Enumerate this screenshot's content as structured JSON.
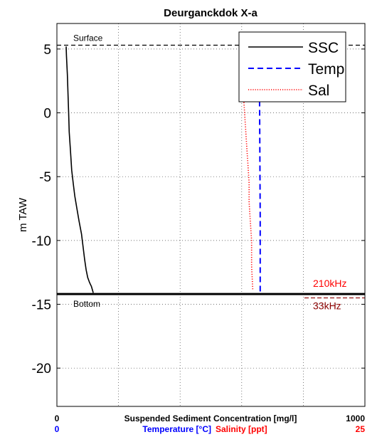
{
  "chart_data": {
    "type": "line",
    "title": "Deurganckdok X-a",
    "ylabel": "m TAW",
    "ylim": [
      -23,
      7
    ],
    "yticks": [
      5,
      0,
      -5,
      -10,
      -15,
      -20
    ],
    "grid": true,
    "legend_position": "top-right",
    "colors": {
      "ssc": "#000000",
      "temp": "#0000ff",
      "sal": "#ff0000",
      "label_210": "#ff0000",
      "label_33": "#8b0000"
    },
    "x_axes": [
      {
        "name": "Suspended Sediment Concentration [mg/l]",
        "min_label": "0",
        "max_label": "1000",
        "min": 0,
        "max": 1000,
        "color": "#000000"
      },
      {
        "name": "Temperature [°C]",
        "min_label": "0",
        "color": "#0000ff"
      },
      {
        "name": "Salinity [ppt]",
        "max_label": "25",
        "min": 0,
        "max": 25,
        "color": "#ff0000"
      }
    ],
    "reference_lines": [
      {
        "label": "Surface",
        "y": 5.3,
        "style": "dashed",
        "color": "#000000"
      },
      {
        "label": "Bottom",
        "y": -14.2,
        "style": "solid",
        "color": "#000000"
      }
    ],
    "annotations": [
      {
        "text": "210kHz",
        "y": -14.2,
        "color": "#ff0000"
      },
      {
        "text": "33kHz",
        "y": -14.5,
        "color": "#8b0000"
      }
    ],
    "series": [
      {
        "name": "SSC",
        "style": "solid",
        "color": "#000000",
        "x": [
          30,
          31,
          34,
          36,
          38,
          40,
          44,
          48,
          53,
          58,
          65,
          72,
          80,
          85,
          90,
          95,
          100,
          106,
          112,
          118
        ],
        "y": [
          5.2,
          4.5,
          3,
          1.5,
          0,
          -1.5,
          -3,
          -4.5,
          -5.5,
          -6.5,
          -7.5,
          -8.5,
          -9.5,
          -10.5,
          -11.5,
          -12.3,
          -12.9,
          -13.3,
          -13.6,
          -14.1
        ]
      },
      {
        "name": "Temp",
        "style": "dashed",
        "color": "#0000ff",
        "x": [
          0.658,
          0.658,
          0.66,
          0.66
        ],
        "y": [
          5.3,
          1.0,
          -8.0,
          -14.2
        ]
      },
      {
        "name": "Sal",
        "style": "dotted",
        "color": "#ff0000",
        "x": [
          14.9,
          15.0,
          15.1,
          15.2,
          15.3,
          15.4,
          15.5,
          15.6,
          15.6,
          15.7,
          15.8,
          15.8,
          15.9
        ],
        "y": [
          4.8,
          3.5,
          2,
          0.5,
          -1,
          -2.5,
          -4,
          -5.5,
          -7,
          -8.5,
          -10,
          -12,
          -13.9
        ]
      }
    ]
  }
}
